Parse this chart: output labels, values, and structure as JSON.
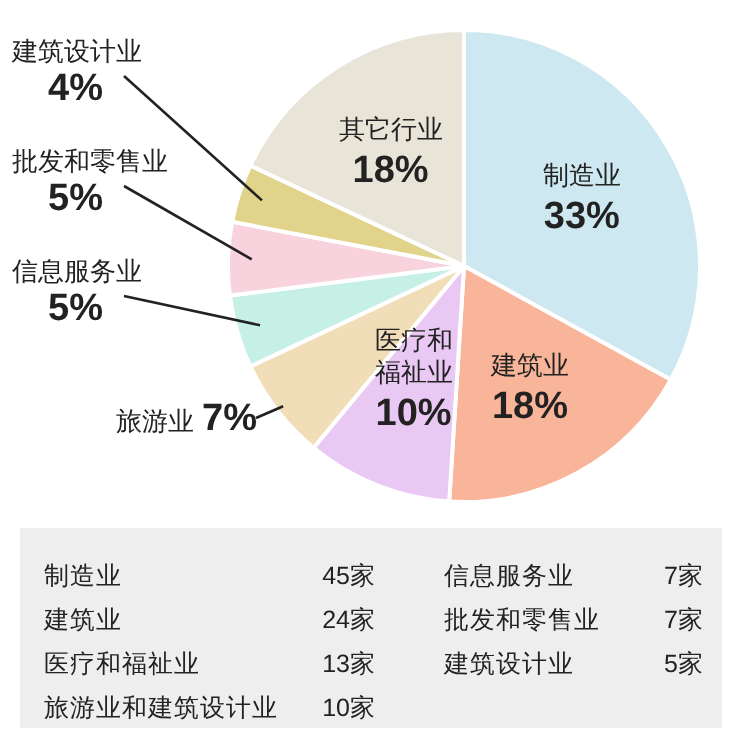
{
  "chart_data": {
    "type": "pie",
    "categories": [
      "制造业",
      "建筑业",
      "医疗和福祉业",
      "旅游业",
      "信息服务业",
      "批发和零售业",
      "建筑设计业",
      "其它行业"
    ],
    "values": [
      33,
      18,
      10,
      7,
      5,
      5,
      4,
      18
    ],
    "value_labels": [
      "33%",
      "18%",
      "10%",
      "7%",
      "5%",
      "5%",
      "4%",
      "18%"
    ],
    "colors": [
      "#cde8f1",
      "#f9b59a",
      "#e9c8f3",
      "#f1deb8",
      "#c6f0e5",
      "#f8d2dd",
      "#e2d38b",
      "#e8e4d7"
    ],
    "annotations": [
      "制造业 45家",
      "建筑业 24家",
      "医疗和福祉业 13家",
      "旅游业和建筑设计业 10家",
      "信息服务业 7家",
      "批发和零售业 7家",
      "建筑设计业 5家"
    ]
  }
}
